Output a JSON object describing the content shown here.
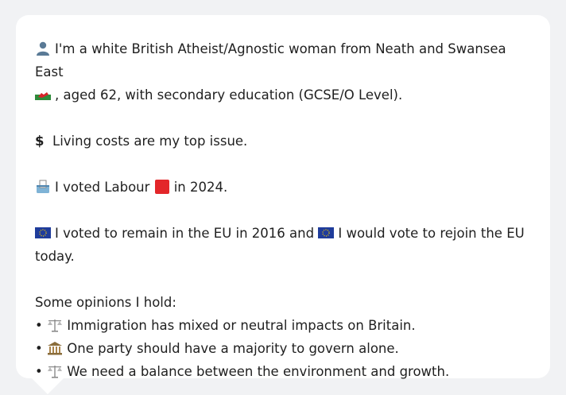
{
  "profile": {
    "intro_text": "I'm a white British Atheist/Agnostic woman from Neath and Swansea East",
    "intro_cont": ", aged 62, with secondary education (GCSE/O Level).",
    "issue_symbol": "$",
    "issue_text": "Living costs are my top issue.",
    "vote_prefix": "I voted Labour",
    "vote_suffix": "in 2024.",
    "eu_part1": "I voted to remain in the EU in 2016 and",
    "eu_part2": "I would vote to rejoin the EU today.",
    "opinions_heading": "Some opinions I hold:",
    "opinions": [
      {
        "icon": "scales-icon",
        "text": "Immigration has mixed or neutral impacts on Britain."
      },
      {
        "icon": "government-building-icon",
        "text": "One party should have a majority to govern alone."
      },
      {
        "icon": "scales-icon",
        "text": "We need a balance between the environment and growth."
      }
    ]
  },
  "colors": {
    "labour_red": "#e3262a",
    "eu_blue": "#1f3c9b",
    "wales_green": "#2e8b3a",
    "wales_red": "#d8232a"
  }
}
